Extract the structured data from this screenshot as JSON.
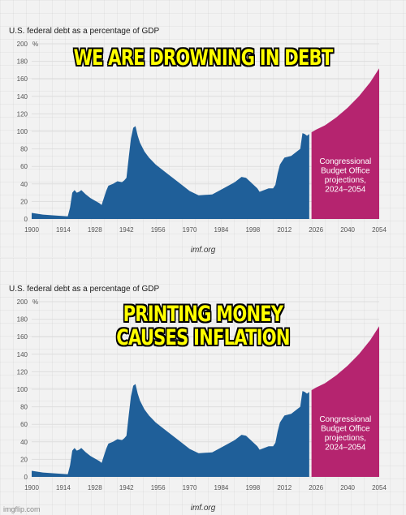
{
  "watermark": "imgflip.com",
  "panels": [
    {
      "caption_lines": [
        "WE ARE DROWNING IN DEBT"
      ]
    },
    {
      "caption_lines": [
        "PRINTING MONEY",
        "CAUSES INFLATION"
      ]
    }
  ],
  "chart_data": {
    "type": "area",
    "title": "U.S. federal debt as a percentage of GDP",
    "ylabel": "%",
    "source": "imf.org",
    "ylim": [
      0,
      200
    ],
    "xlim": [
      1900,
      2054
    ],
    "yticks": [
      0,
      20,
      40,
      60,
      80,
      100,
      120,
      140,
      160,
      180,
      200
    ],
    "xticks": [
      1900,
      1914,
      1928,
      1942,
      1956,
      1970,
      1984,
      1998,
      2012,
      2026,
      2040,
      2054
    ],
    "grid": true,
    "colors": {
      "historical": "#1f5f99",
      "projection": "#b5246f"
    },
    "projection_label": [
      "Congressional",
      "Budget Office",
      "projections,",
      "2024–2054"
    ],
    "series": [
      {
        "name": "historical",
        "x": [
          1900,
          1905,
          1910,
          1916,
          1917,
          1918,
          1919,
          1920,
          1921,
          1922,
          1924,
          1926,
          1928,
          1930,
          1931,
          1932,
          1933,
          1934,
          1936,
          1938,
          1940,
          1941,
          1942,
          1943,
          1944,
          1945,
          1946,
          1947,
          1948,
          1950,
          1952,
          1955,
          1960,
          1965,
          1970,
          1974,
          1980,
          1985,
          1990,
          1993,
          1995,
          2000,
          2001,
          2005,
          2007,
          2008,
          2009,
          2010,
          2012,
          2015,
          2018,
          2019,
          2020,
          2021,
          2022,
          2023
        ],
        "values": [
          7,
          5,
          4,
          3,
          13,
          30,
          33,
          30,
          31,
          33,
          28,
          24,
          21,
          18,
          16,
          24,
          32,
          38,
          40,
          43,
          42,
          44,
          47,
          70,
          92,
          104,
          106,
          95,
          87,
          77,
          70,
          62,
          52,
          42,
          32,
          27,
          28,
          35,
          42,
          48,
          47,
          35,
          31,
          35,
          35,
          39,
          52,
          62,
          70,
          72,
          78,
          80,
          98,
          97,
          95,
          97
        ]
      },
      {
        "name": "projection",
        "x": [
          2024,
          2026,
          2030,
          2035,
          2040,
          2045,
          2050,
          2054
        ],
        "values": [
          99,
          102,
          107,
          116,
          127,
          140,
          156,
          172
        ]
      }
    ]
  }
}
